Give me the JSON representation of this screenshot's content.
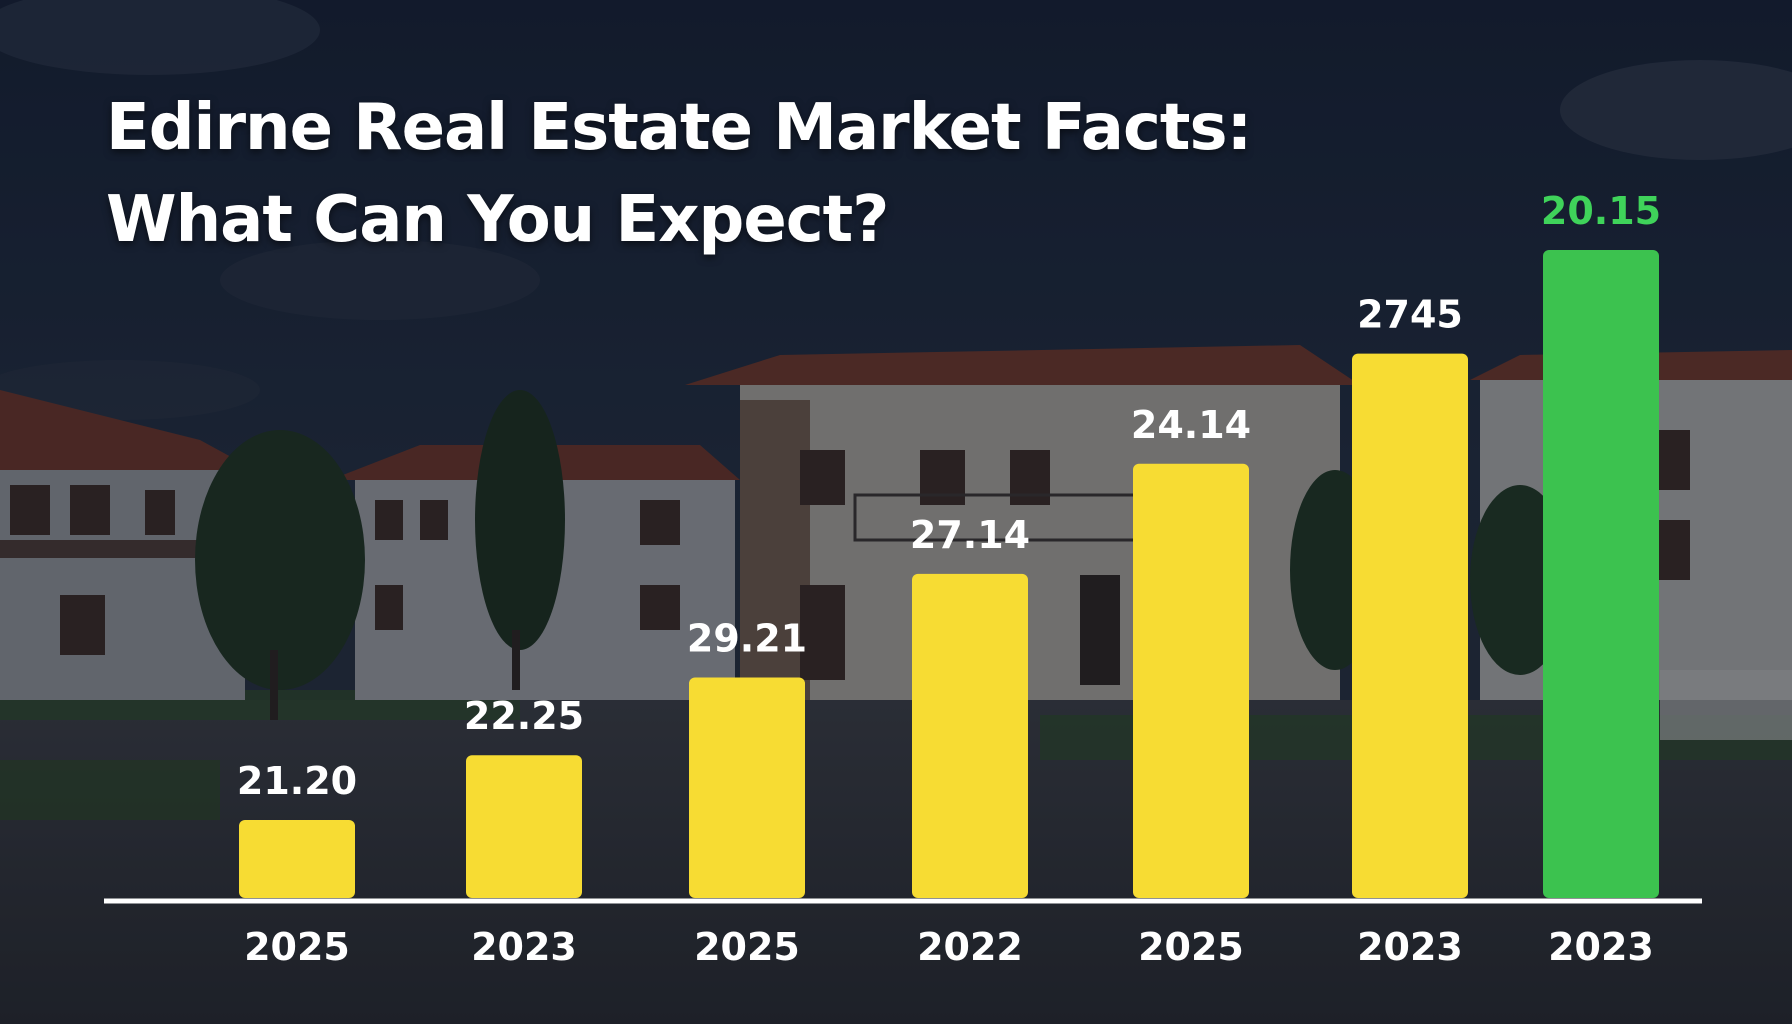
{
  "title_lines": [
    "Edirne Real Estate Market Facts:",
    "What Can You Expect?"
  ],
  "colors": {
    "bar": "#f7dc33",
    "highlight_bar": "#3cc24f",
    "highlight_label": "#3fd35a",
    "label": "#ffffff",
    "baseline": "#ffffff"
  },
  "chart_data": {
    "type": "bar",
    "title": "Edirne Real Estate Market Facts: What Can You Expect?",
    "categories": [
      "2025",
      "2023",
      "2025",
      "2022",
      "2025",
      "2023",
      "2023"
    ],
    "value_labels": [
      "21.20",
      "22.25",
      "29.21",
      "27.14",
      "24.14",
      "2745",
      "20.15"
    ],
    "relative_heights": [
      0.12,
      0.22,
      0.34,
      0.5,
      0.67,
      0.84,
      1.0
    ],
    "highlight_index": 6,
    "grid": false,
    "legend": "none"
  }
}
